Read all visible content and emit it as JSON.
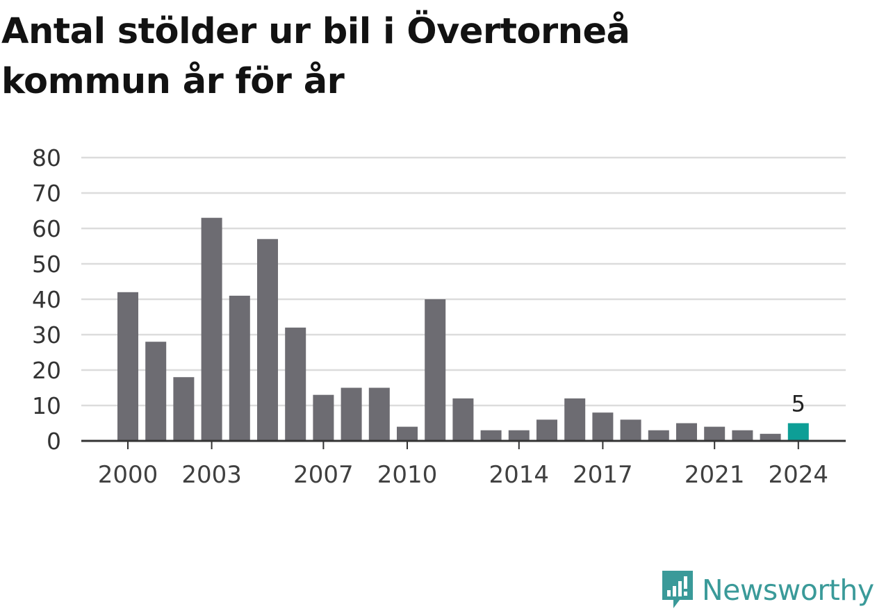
{
  "title": "Antal stölder ur bil i Övertorneå kommun år för år",
  "brand": "Newsworthy",
  "brand_icon": "newsworthy-logo-icon",
  "colors": {
    "bar": "#6d6c72",
    "highlight": "#0d9e96",
    "grid": "#dcdcdc",
    "axis": "#333333",
    "brand": "#3a9a99"
  },
  "chart_data": {
    "type": "bar",
    "title": "Antal stölder ur bil i Övertorneå kommun år för år",
    "xlabel": "",
    "ylabel": "",
    "ylim": [
      0,
      80
    ],
    "yticks": [
      0,
      10,
      20,
      30,
      40,
      50,
      60,
      70,
      80
    ],
    "grid": true,
    "categories": [
      2000,
      2001,
      2002,
      2003,
      2004,
      2005,
      2006,
      2007,
      2008,
      2009,
      2010,
      2011,
      2012,
      2013,
      2014,
      2015,
      2016,
      2017,
      2018,
      2019,
      2020,
      2021,
      2022,
      2023,
      2024
    ],
    "values": [
      42,
      28,
      18,
      63,
      41,
      57,
      32,
      13,
      15,
      15,
      4,
      40,
      12,
      3,
      3,
      6,
      12,
      8,
      6,
      3,
      5,
      4,
      3,
      2,
      5
    ],
    "xtick_labels": [
      "2000",
      "2003",
      "2007",
      "2010",
      "2014",
      "2017",
      "2021",
      "2024"
    ],
    "highlight_index": 24,
    "highlight_label": "5"
  }
}
